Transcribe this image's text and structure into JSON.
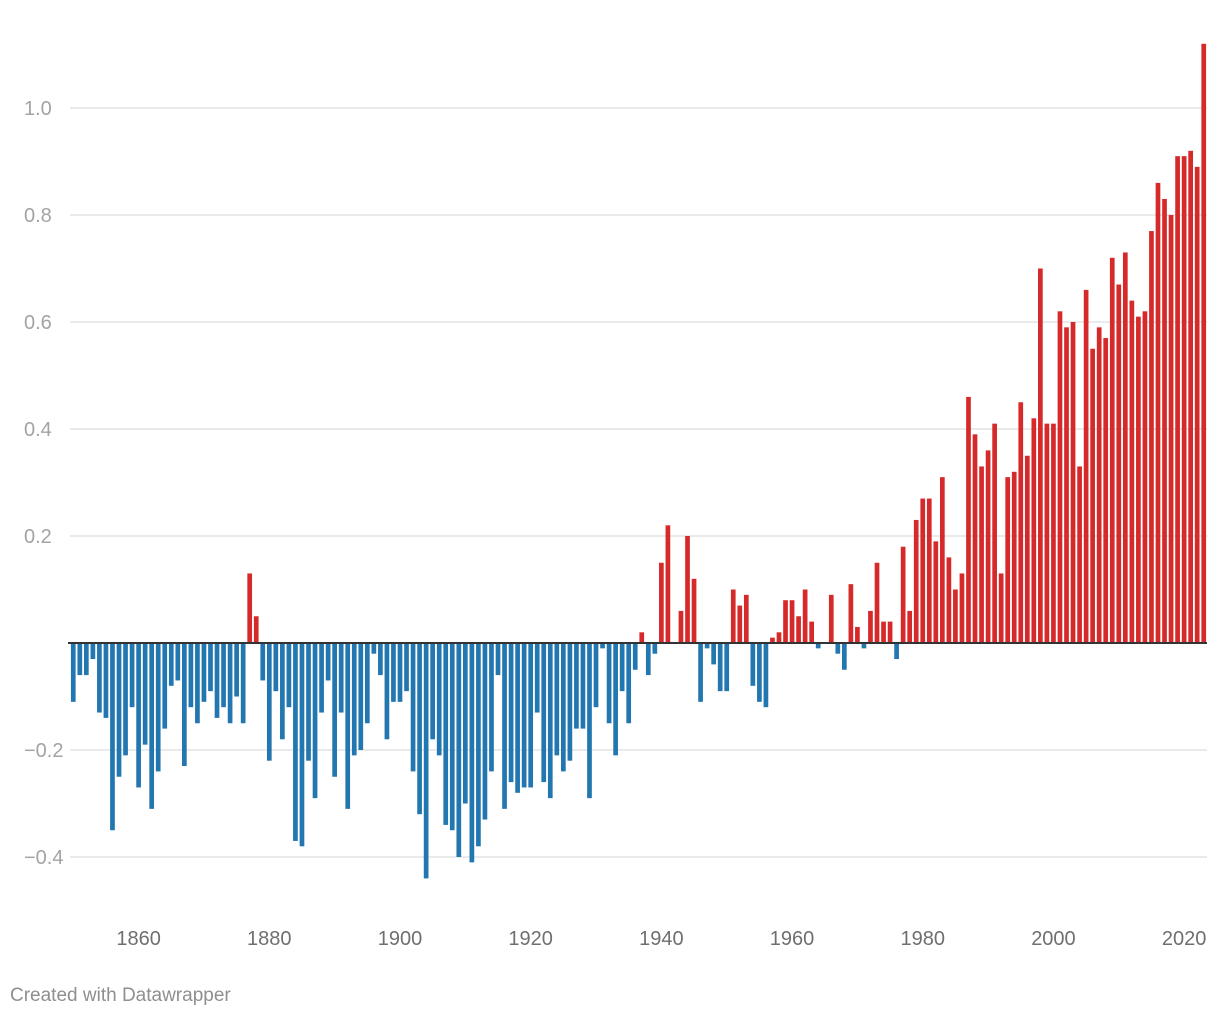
{
  "credit": "Created with Datawrapper",
  "colors": {
    "positive": "#d62a2a",
    "negative": "#2277b0",
    "grid": "#e3e3e3",
    "baseline": "#333333"
  },
  "chart_data": {
    "type": "bar",
    "title": "",
    "xlabel": "",
    "ylabel": "",
    "x_start": 1850,
    "x_end": 2023,
    "xlim": [
      1849.5,
      2023.5
    ],
    "ylim": [
      -0.48,
      1.18
    ],
    "grid": true,
    "y_ticks": [
      {
        "value": -0.4,
        "label": "−0.4"
      },
      {
        "value": -0.2,
        "label": "−0.2"
      },
      {
        "value": 0.2,
        "label": "0.2"
      },
      {
        "value": 0.4,
        "label": "0.4"
      },
      {
        "value": 0.6,
        "label": "0.6"
      },
      {
        "value": 0.8,
        "label": "0.8"
      },
      {
        "value": 1.0,
        "label": "1.0"
      }
    ],
    "x_ticks": [
      {
        "value": 1860,
        "label": "1860"
      },
      {
        "value": 1880,
        "label": "1880"
      },
      {
        "value": 1900,
        "label": "1900"
      },
      {
        "value": 1920,
        "label": "1920"
      },
      {
        "value": 1940,
        "label": "1940"
      },
      {
        "value": 1960,
        "label": "1960"
      },
      {
        "value": 1980,
        "label": "1980"
      },
      {
        "value": 2000,
        "label": "2000"
      },
      {
        "value": 2020,
        "label": "2020"
      }
    ],
    "values": [
      -0.11,
      -0.06,
      -0.06,
      -0.03,
      -0.13,
      -0.14,
      -0.35,
      -0.25,
      -0.21,
      -0.12,
      -0.27,
      -0.19,
      -0.31,
      -0.24,
      -0.16,
      -0.08,
      -0.07,
      -0.23,
      -0.12,
      -0.15,
      -0.11,
      -0.09,
      -0.14,
      -0.12,
      -0.15,
      -0.1,
      -0.15,
      0.13,
      0.05,
      -0.07,
      -0.22,
      -0.09,
      -0.18,
      -0.12,
      -0.37,
      -0.38,
      -0.22,
      -0.29,
      -0.13,
      -0.07,
      -0.25,
      -0.13,
      -0.31,
      -0.21,
      -0.2,
      -0.15,
      -0.02,
      -0.06,
      -0.18,
      -0.11,
      -0.11,
      -0.09,
      -0.24,
      -0.32,
      -0.44,
      -0.18,
      -0.21,
      -0.34,
      -0.35,
      -0.4,
      -0.3,
      -0.41,
      -0.38,
      -0.33,
      -0.24,
      -0.06,
      -0.31,
      -0.26,
      -0.28,
      -0.27,
      -0.27,
      -0.13,
      -0.26,
      -0.29,
      -0.21,
      -0.24,
      -0.22,
      -0.16,
      -0.16,
      -0.29,
      -0.12,
      -0.01,
      -0.15,
      -0.21,
      -0.09,
      -0.15,
      -0.05,
      0.02,
      -0.06,
      -0.02,
      0.15,
      0.22,
      0.0,
      0.06,
      0.2,
      0.12,
      -0.11,
      -0.01,
      -0.04,
      -0.09,
      -0.09,
      0.1,
      0.07,
      0.09,
      -0.08,
      -0.11,
      -0.12,
      0.01,
      0.02,
      0.08,
      0.08,
      0.05,
      0.1,
      0.04,
      -0.01,
      0.0,
      0.09,
      -0.02,
      -0.05,
      0.11,
      0.03,
      -0.01,
      0.06,
      0.15,
      0.04,
      0.04,
      -0.03,
      0.18,
      0.06,
      0.23,
      0.27,
      0.27,
      0.19,
      0.31,
      0.16,
      0.1,
      0.13,
      0.46,
      0.39,
      0.33,
      0.36,
      0.41,
      0.13,
      0.31,
      0.32,
      0.45,
      0.35,
      0.42,
      0.7,
      0.41,
      0.41,
      0.62,
      0.59,
      0.6,
      0.33,
      0.66,
      0.55,
      0.59,
      0.57,
      0.72,
      0.67,
      0.73,
      0.64,
      0.61,
      0.62,
      0.77,
      0.86,
      0.83,
      0.8,
      0.91,
      0.91,
      0.92,
      0.89,
      1.12
    ]
  }
}
